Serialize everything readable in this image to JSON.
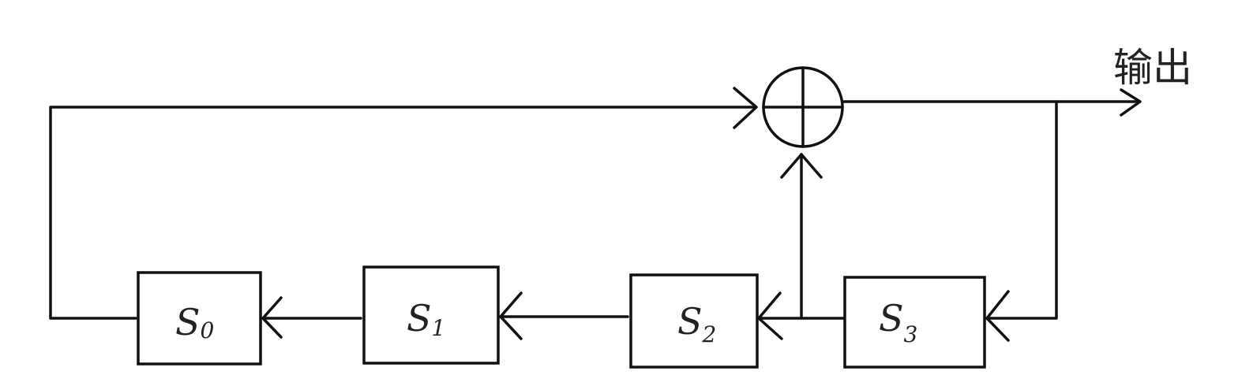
{
  "registers": [
    {
      "name": "S",
      "index": "0"
    },
    {
      "name": "S",
      "index": "1"
    },
    {
      "name": "S",
      "index": "2"
    },
    {
      "name": "S",
      "index": "3"
    }
  ],
  "xor_symbol": "⊕",
  "output_label": "输出",
  "colors": {
    "stroke": "#111111",
    "background": "#ffffff"
  }
}
